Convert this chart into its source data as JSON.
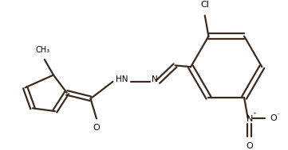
{
  "bg_color": "#ffffff",
  "line_color": "#3d2b1f",
  "text_color": "#000000",
  "line_width": 1.6,
  "figsize": [
    3.61,
    1.89
  ],
  "dpi": 100,
  "xlim": [
    0,
    361
  ],
  "ylim": [
    0,
    189
  ]
}
